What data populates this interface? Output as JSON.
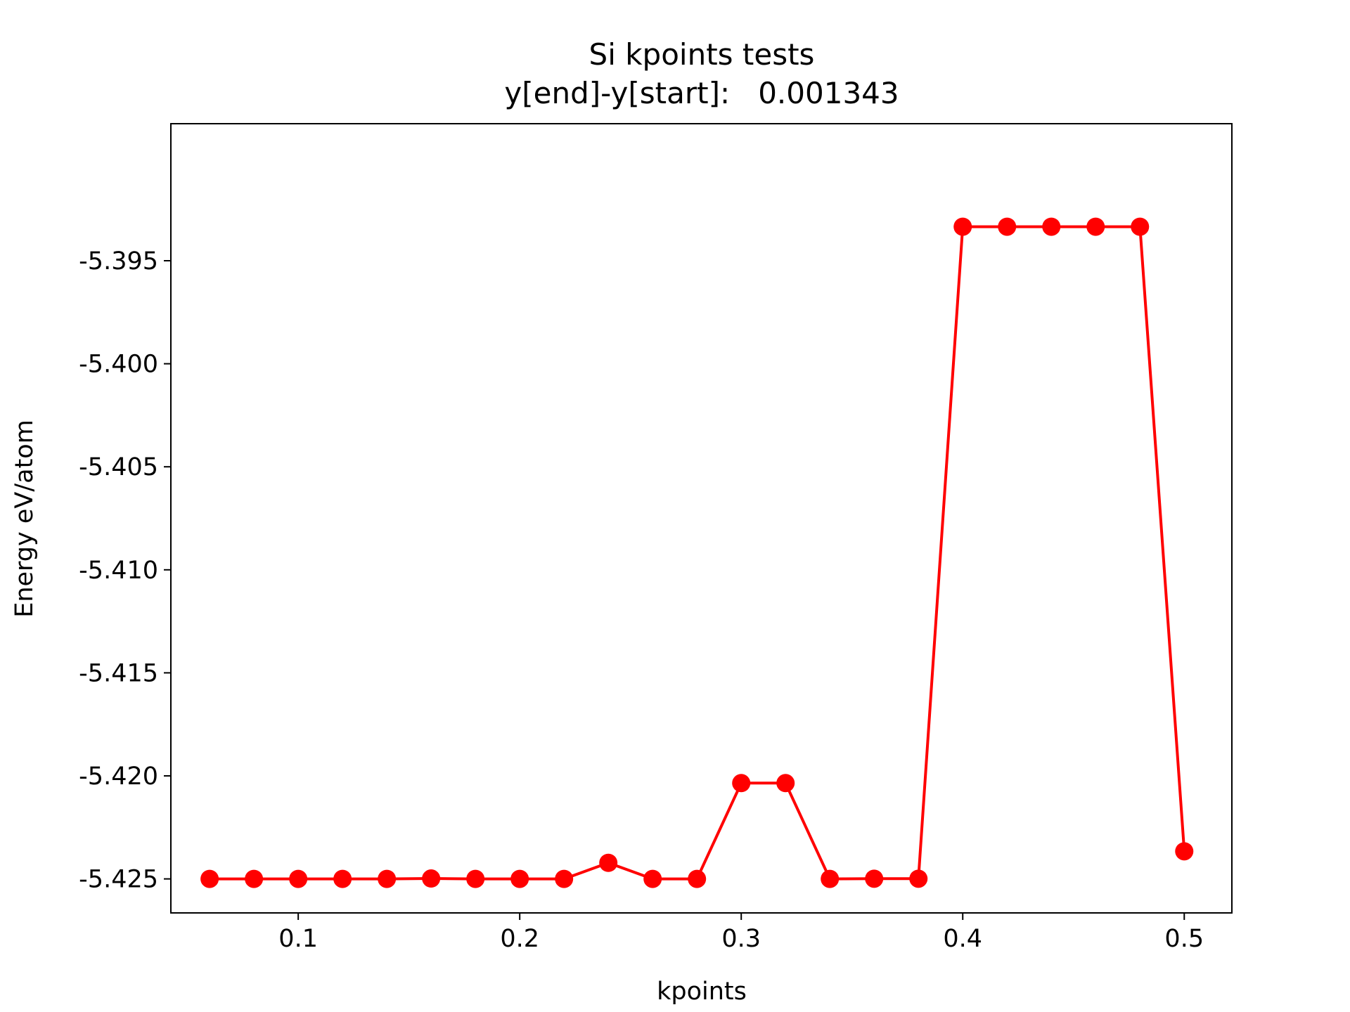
{
  "chart_data": {
    "type": "line",
    "title": "Si kpoints tests",
    "subtitle": "y[end]-y[start]:   0.001343",
    "xlabel": "kpoints",
    "ylabel": "Energy eV/atom",
    "xlim": [
      0.0425,
      0.5215
    ],
    "ylim": [
      -5.42665,
      -5.38835
    ],
    "xticks": [
      0.1,
      0.2,
      0.3,
      0.4,
      0.5
    ],
    "xtick_labels": [
      "0.1",
      "0.2",
      "0.3",
      "0.4",
      "0.5"
    ],
    "yticks": [
      -5.395,
      -5.4,
      -5.405,
      -5.41,
      -5.415,
      -5.42,
      -5.425
    ],
    "ytick_labels": [
      "-5.395",
      "-5.400",
      "-5.405",
      "-5.410",
      "-5.415",
      "-5.420",
      "-5.425"
    ],
    "grid": false,
    "series": [
      {
        "color": "#ff0000",
        "marker": "circle",
        "x": [
          0.06,
          0.08,
          0.1,
          0.12,
          0.14,
          0.16,
          0.18,
          0.2,
          0.22,
          0.24,
          0.26,
          0.28,
          0.3,
          0.32,
          0.34,
          0.36,
          0.38,
          0.4,
          0.42,
          0.44,
          0.46,
          0.48,
          0.5
        ],
        "y": [
          -5.425,
          -5.425,
          -5.425,
          -5.425,
          -5.425,
          -5.42498,
          -5.425,
          -5.425,
          -5.425,
          -5.42422,
          -5.425,
          -5.425,
          -5.42035,
          -5.42035,
          -5.425,
          -5.42499,
          -5.42499,
          -5.39335,
          -5.39335,
          -5.39335,
          -5.39335,
          -5.39335,
          -5.42366
        ]
      }
    ]
  }
}
